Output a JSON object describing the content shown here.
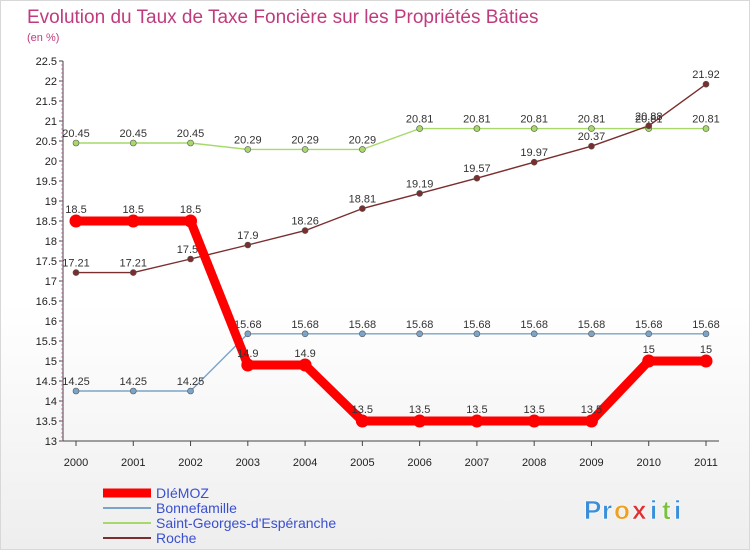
{
  "chart_data": {
    "type": "line",
    "title": "Evolution du Taux de Taxe Foncière sur les Propriétés Bâties",
    "ylabel": "(en %)",
    "x": [
      "2000",
      "2001",
      "2002",
      "2003",
      "2004",
      "2005",
      "2006",
      "2007",
      "2008",
      "2009",
      "2010",
      "2011"
    ],
    "ylim": [
      13,
      22.5
    ],
    "yticks": [
      "13",
      "13.5",
      "14",
      "14.5",
      "15",
      "15.5",
      "16",
      "16.5",
      "17",
      "17.5",
      "18",
      "18.5",
      "19",
      "19.5",
      "20",
      "20.5",
      "21",
      "21.5",
      "22",
      "22.5"
    ],
    "series": [
      {
        "name": "DIéMOZ",
        "color": "#ff0000",
        "values": [
          18.5,
          18.5,
          18.5,
          14.9,
          14.9,
          13.5,
          13.5,
          13.5,
          13.5,
          13.5,
          15,
          15
        ],
        "labels": [
          "18.5",
          "18.5",
          "18.5",
          "14.9",
          "14.9",
          "13.5",
          "13.5",
          "13.5",
          "13.5",
          "13.5",
          "15",
          "15"
        ]
      },
      {
        "name": "Bonnefamille",
        "color": "#7aa4c8",
        "values": [
          14.25,
          14.25,
          14.25,
          15.68,
          15.68,
          15.68,
          15.68,
          15.68,
          15.68,
          15.68,
          15.68,
          15.68
        ],
        "labels": [
          "14.25",
          "14.25",
          "14.25",
          "15.68",
          "15.68",
          "15.68",
          "15.68",
          "15.68",
          "15.68",
          "15.68",
          "15.68",
          "15.68"
        ]
      },
      {
        "name": "Saint-Georges-d'Espéranche",
        "color": "#a6d96a",
        "values": [
          20.45,
          20.45,
          20.45,
          20.29,
          20.29,
          20.29,
          20.81,
          20.81,
          20.81,
          20.81,
          20.81,
          20.81
        ],
        "labels": [
          "20.45",
          "20.45",
          "20.45",
          "20.29",
          "20.29",
          "20.29",
          "20.81",
          "20.81",
          "20.81",
          "20.81",
          "20.81",
          "20.81"
        ]
      },
      {
        "name": "Roche",
        "color": "#7a2e2e",
        "values": [
          17.21,
          17.21,
          17.55,
          17.9,
          18.26,
          18.81,
          19.19,
          19.57,
          19.97,
          20.37,
          20.88,
          21.92
        ],
        "labels": [
          "17.21",
          "17.21",
          "17.55",
          "17.9",
          "18.26",
          "18.81",
          "19.19",
          "19.57",
          "19.97",
          "20.37",
          "20.88",
          "21.92"
        ]
      }
    ],
    "legend_position": "bottom-left",
    "grid": false
  },
  "brand": {
    "letters": [
      "P",
      "r",
      "o",
      "x",
      "i",
      "t",
      "i"
    ],
    "colors": [
      "#3a8fd8",
      "#3a8fd8",
      "#f0a020",
      "#e03030",
      "#3a8fd8",
      "#7cc040",
      "#3a8fd8"
    ],
    "name": "Proxiti"
  },
  "colors": {
    "title": "#c03b7d",
    "legend_text": "#3a4fd0",
    "axis": "#444444"
  }
}
